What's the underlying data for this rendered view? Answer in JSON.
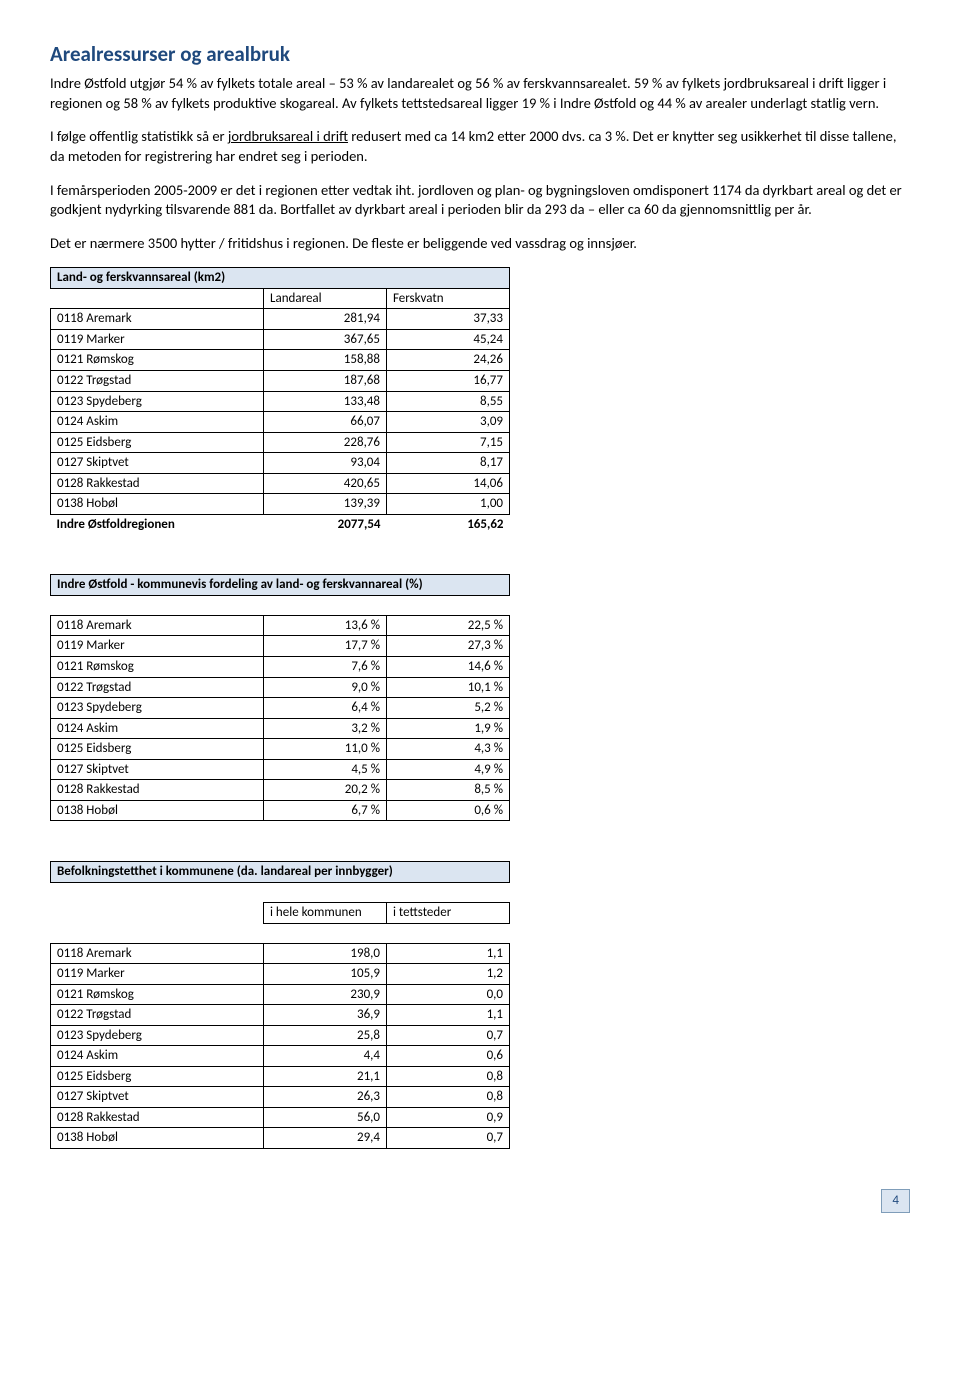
{
  "title": "Arealressurser og arealbruk",
  "para1": "Indre Østfold utgjør 54 % av fylkets totale areal – 53 % av landarealet og 56 % av ferskvannsarealet. 59 % av fylkets jordbruksareal i drift ligger i regionen og 58 % av fylkets produktive skogareal. Av fylkets tettstedsareal ligger 19 % i Indre Østfold og 44 % av arealer underlagt statlig vern.",
  "para2a": "I følge offentlig statistikk så er ",
  "para2link": "jordbruksareal i drift",
  "para2b": " redusert med ca 14 km2 etter 2000 dvs. ca 3 %. Det er knytter seg usikkerhet til disse tallene, da metoden for registrering har endret seg i perioden.",
  "para3": "I femårsperioden 2005-2009 er det i regionen etter vedtak iht. jordloven og plan- og bygningsloven omdisponert 1174 da dyrkbart areal og det er godkjent nydyrking tilsvarende 881 da. Bortfallet av dyrkbart areal i perioden blir da 293 da – eller ca 60 da gjennomsnittlig per år.",
  "para4": "Det er nærmere 3500 hytter / fritidshus i regionen. De fleste er beliggende ved vassdrag og innsjøer.",
  "table1_title": "Land- og ferskvannsareal (km2)",
  "table1_col1": "Landareal",
  "table1_col2": "Ferskvatn",
  "table1_rows": [
    {
      "name": "0118 Aremark",
      "v1": "281,94",
      "v2": "37,33"
    },
    {
      "name": "0119 Marker",
      "v1": "367,65",
      "v2": "45,24"
    },
    {
      "name": "0121 Rømskog",
      "v1": "158,88",
      "v2": "24,26"
    },
    {
      "name": "0122 Trøgstad",
      "v1": "187,68",
      "v2": "16,77"
    },
    {
      "name": "0123 Spydeberg",
      "v1": "133,48",
      "v2": "8,55"
    },
    {
      "name": "0124 Askim",
      "v1": "66,07",
      "v2": "3,09"
    },
    {
      "name": "0125 Eidsberg",
      "v1": "228,76",
      "v2": "7,15"
    },
    {
      "name": "0127 Skiptvet",
      "v1": "93,04",
      "v2": "8,17"
    },
    {
      "name": "0128 Rakkestad",
      "v1": "420,65",
      "v2": "14,06"
    },
    {
      "name": "0138 Hobøl",
      "v1": "139,39",
      "v2": "1,00"
    }
  ],
  "table1_total_label": "Indre Østfoldregionen",
  "table1_total_v1": "2077,54",
  "table1_total_v2": "165,62",
  "table2_title": "Indre Østfold - kommunevis fordeling av land- og ferskvannareal (%)",
  "table2_rows": [
    {
      "name": "0118 Aremark",
      "v1": "13,6 %",
      "v2": "22,5 %"
    },
    {
      "name": "0119 Marker",
      "v1": "17,7 %",
      "v2": "27,3 %"
    },
    {
      "name": "0121 Rømskog",
      "v1": "7,6 %",
      "v2": "14,6 %"
    },
    {
      "name": "0122 Trøgstad",
      "v1": "9,0 %",
      "v2": "10,1 %"
    },
    {
      "name": "0123 Spydeberg",
      "v1": "6,4 %",
      "v2": "5,2 %"
    },
    {
      "name": "0124 Askim",
      "v1": "3,2 %",
      "v2": "1,9 %"
    },
    {
      "name": "0125 Eidsberg",
      "v1": "11,0 %",
      "v2": "4,3 %"
    },
    {
      "name": "0127 Skiptvet",
      "v1": "4,5 %",
      "v2": "4,9 %"
    },
    {
      "name": "0128 Rakkestad",
      "v1": "20,2 %",
      "v2": "8,5 %"
    },
    {
      "name": "0138 Hobøl",
      "v1": "6,7 %",
      "v2": "0,6 %"
    }
  ],
  "table3_title": "Befolkningstetthet i kommunene (da. landareal per innbygger)",
  "table3_col1": "i hele kommunen",
  "table3_col2": "i tettsteder",
  "table3_rows": [
    {
      "name": "0118 Aremark",
      "v1": "198,0",
      "v2": "1,1"
    },
    {
      "name": "0119 Marker",
      "v1": "105,9",
      "v2": "1,2"
    },
    {
      "name": "0121 Rømskog",
      "v1": "230,9",
      "v2": "0,0"
    },
    {
      "name": "0122 Trøgstad",
      "v1": "36,9",
      "v2": "1,1"
    },
    {
      "name": "0123 Spydeberg",
      "v1": "25,8",
      "v2": "0,7"
    },
    {
      "name": "0124 Askim",
      "v1": "4,4",
      "v2": "0,6"
    },
    {
      "name": "0125 Eidsberg",
      "v1": "21,1",
      "v2": "0,8"
    },
    {
      "name": "0127 Skiptvet",
      "v1": "26,3",
      "v2": "0,8"
    },
    {
      "name": "0128 Rakkestad",
      "v1": "56,0",
      "v2": "0,9"
    },
    {
      "name": "0138 Hobøl",
      "v1": "29,4",
      "v2": "0,7"
    }
  ],
  "page_number": "4"
}
